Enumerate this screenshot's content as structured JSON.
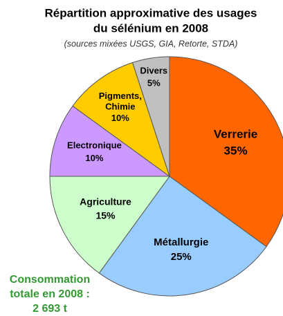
{
  "chart_data": {
    "type": "pie",
    "title": [
      "Répartition approximative des usages",
      "du sélénium en 2008"
    ],
    "subtitle": "(sources mixées USGS, GIA, Retorte, STDA)",
    "categories": [
      "Verrerie",
      "Métallurgie",
      "Agriculture",
      "Electronique",
      "Pigments, Chimie",
      "Divers"
    ],
    "values": [
      35,
      25,
      15,
      10,
      10,
      5
    ],
    "value_labels": [
      "35%",
      "25%",
      "15%",
      "10%",
      "10%",
      "5%"
    ],
    "colors": [
      "#ff6600",
      "#99ccff",
      "#ccffcc",
      "#cc99ff",
      "#ffcc00",
      "#c0c0c0"
    ],
    "annotation": [
      "Consommation",
      "totale en 2008 :",
      "2 693 t"
    ]
  }
}
